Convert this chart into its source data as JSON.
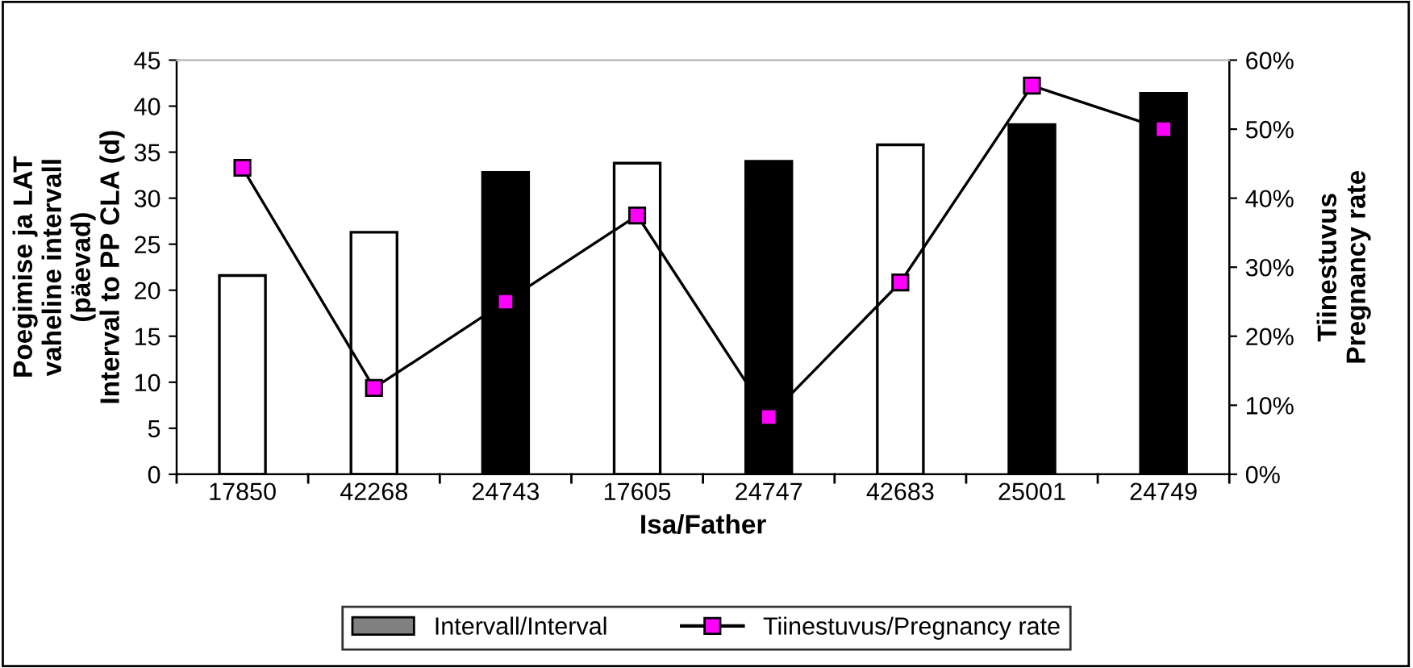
{
  "chart_data": {
    "type": "bar",
    "xlabel": "Isa/Father",
    "ylabel": "Poegimise ja LAT\nvaheline intervall\n(päevad)\nInterval to PP CLA (d)",
    "y2label": "Tiinestuvus\nPregnancy rate",
    "categories": [
      "17850",
      "42268",
      "24743",
      "17605",
      "24747",
      "42683",
      "25001",
      "24749"
    ],
    "series": [
      {
        "name": "Intervall/Interval",
        "color": "#808080",
        "colors": [
          "#ffffff",
          "#ffffff",
          "#000000",
          "#ffffff",
          "#000000",
          "#ffffff",
          "#000000",
          "#000000"
        ],
        "values": [
          21.6,
          26.3,
          32.8,
          33.8,
          34.0,
          35.8,
          38.0,
          41.4
        ]
      },
      {
        "name": "Tiinestuvus/Pregnancy rate",
        "type": "line",
        "axis": "y2",
        "color": "#000000",
        "marker": "square",
        "values": [
          44.4,
          12.5,
          25.0,
          37.5,
          8.3,
          27.8,
          56.3,
          50.0
        ]
      }
    ],
    "ylim": [
      0,
      45
    ],
    "yticks": [
      0,
      5,
      10,
      15,
      20,
      25,
      30,
      35,
      40,
      45
    ],
    "y2lim": [
      0,
      60
    ],
    "y2ticks": [
      {
        "value": 0,
        "label": "0%"
      },
      {
        "value": 10,
        "label": "10%"
      },
      {
        "value": 20,
        "label": "20%"
      },
      {
        "value": 30,
        "label": "30%"
      },
      {
        "value": 40,
        "label": "40%"
      },
      {
        "value": 50,
        "label": "50%"
      },
      {
        "value": 60,
        "label": "60%"
      }
    ],
    "legend": "bottom",
    "grid": false
  }
}
